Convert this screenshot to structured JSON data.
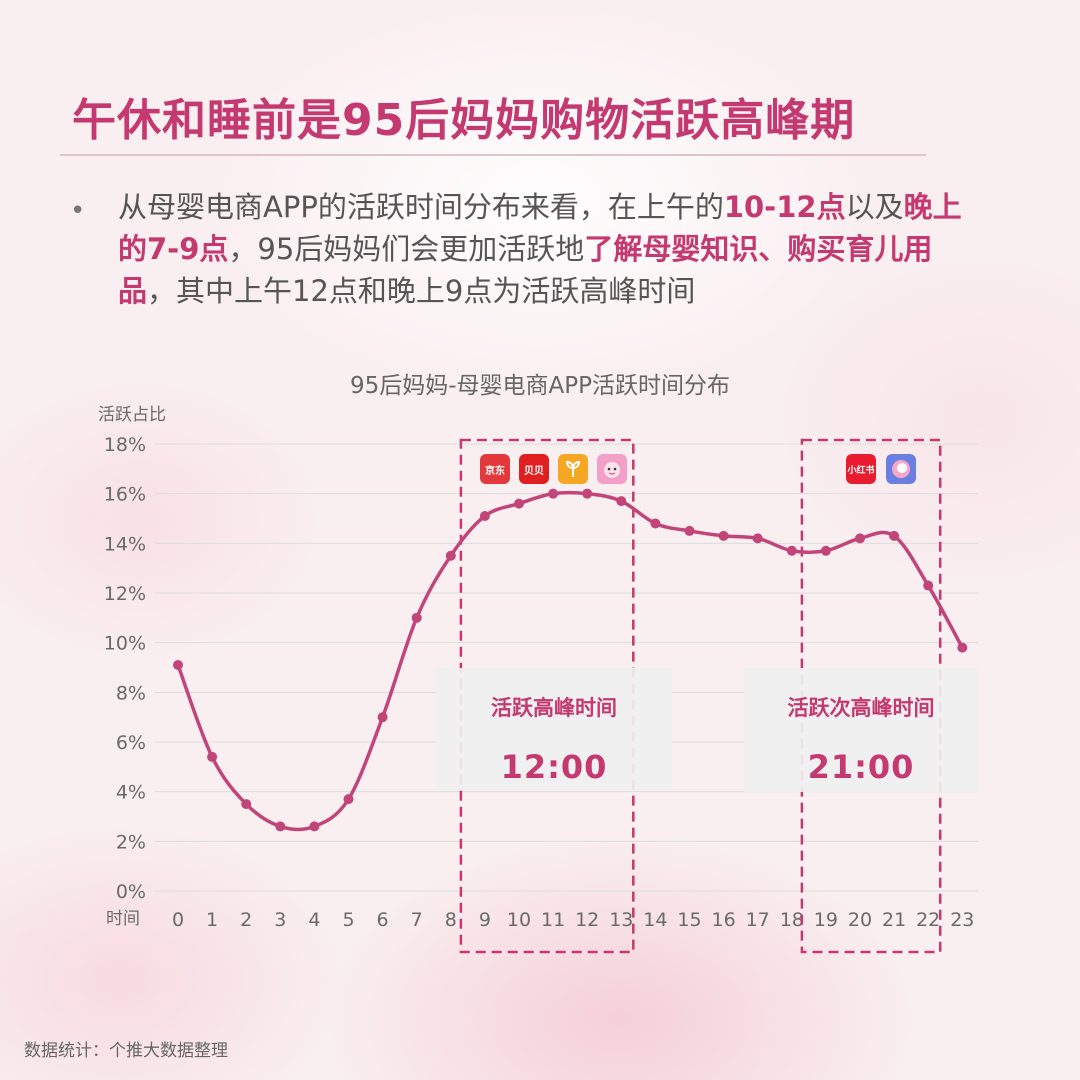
{
  "title": "午休和睡前是95后妈妈购物活跃高峰期",
  "description": {
    "bullet": "•",
    "p1": "从母婴电商APP的活跃时间分布来看，在上午的",
    "h1": "10-12点",
    "p2": "以及",
    "h2": "晚上的7-9点",
    "p3": "，95后妈妈们会更加活跃地",
    "h3": "了解母婴知识、购买育儿用品",
    "p4": "，其中上午12点和晚上9点为活跃高峰时间"
  },
  "colors": {
    "accent": "#c4396f",
    "line": "#c2457a",
    "grid": "#dddddd",
    "callout_bg": "#f0f0f0"
  },
  "callouts": [
    {
      "label": "活跃高峰时间",
      "time": "12:00"
    },
    {
      "label": "活跃次高峰时间",
      "time": "21:00"
    }
  ],
  "apps": {
    "peak": [
      {
        "name": "京东",
        "icon": "jd-icon",
        "color": "#e4393c"
      },
      {
        "name": "贝贝",
        "icon": "beibei-icon",
        "color": "#e02020"
      },
      {
        "name": "",
        "icon": "sprout-icon",
        "color": "#f5a623"
      },
      {
        "name": "",
        "icon": "baby-face-icon",
        "color": "#f3a0c8"
      }
    ],
    "second_peak": [
      {
        "name": "小红书",
        "icon": "xiaohongshu-icon",
        "color": "#e81c2e"
      },
      {
        "name": "",
        "icon": "mom-app-icon",
        "color": "#6a7fe0"
      }
    ]
  },
  "footer": "数据统计：个推大数据整理",
  "chart_data": {
    "type": "line",
    "title": "95后妈妈-母婴电商APP活跃时间分布",
    "ylabel": "活跃占比",
    "xlabel": "时间",
    "x": [
      0,
      1,
      2,
      3,
      4,
      5,
      6,
      7,
      8,
      9,
      10,
      11,
      12,
      13,
      14,
      15,
      16,
      17,
      18,
      19,
      20,
      21,
      22,
      23
    ],
    "series": [
      {
        "values": [
          9.1,
          5.4,
          3.5,
          2.6,
          2.6,
          3.7,
          7.0,
          11.0,
          13.5,
          15.1,
          15.6,
          16.0,
          16.0,
          15.7,
          14.8,
          14.5,
          14.3,
          14.2,
          13.7,
          13.7,
          14.2,
          14.3,
          12.3,
          9.8
        ]
      }
    ],
    "yticks": [
      "0%",
      "2%",
      "4%",
      "6%",
      "8%",
      "10%",
      "12%",
      "14%",
      "16%",
      "18%"
    ],
    "ylim": [
      0,
      18
    ],
    "grid": true,
    "highlight_ranges": [
      [
        9,
        13
      ],
      [
        19,
        22
      ]
    ]
  }
}
